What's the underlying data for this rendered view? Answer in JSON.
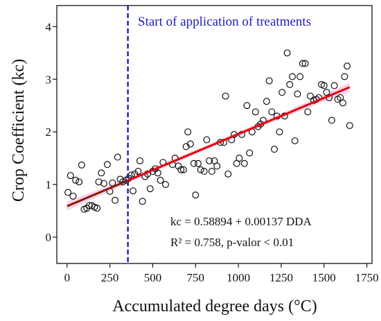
{
  "chart_data": {
    "type": "scatter",
    "title": "",
    "xlabel": "Accumulated degree days (°C)",
    "ylabel": "Crop Coefficient (kc)",
    "xlim": [
      -60,
      1780
    ],
    "ylim": [
      -0.5,
      4.4
    ],
    "xticks": [
      0,
      250,
      500,
      750,
      1000,
      1250,
      1500,
      1750
    ],
    "yticks": [
      0,
      1,
      2,
      3,
      4
    ],
    "grid": false,
    "treatment_line": {
      "x": 355,
      "label": "Start of application of treatments",
      "color": "#1d1db8"
    },
    "regression": {
      "intercept": 0.58894,
      "slope": 0.00137,
      "x_range": [
        0,
        1650
      ],
      "color_before": "#8b1a00",
      "color_after": "#e8000b",
      "equation": "kc = 0.58894 + 0.00137 DDA",
      "stats": "R² = 0.758, p-valor < 0.01"
    },
    "ci_band_color": "#f3c6e2",
    "points": [
      [
        5,
        0.85
      ],
      [
        20,
        1.17
      ],
      [
        35,
        0.78
      ],
      [
        50,
        1.08
      ],
      [
        70,
        1.05
      ],
      [
        85,
        1.37
      ],
      [
        100,
        0.53
      ],
      [
        115,
        0.55
      ],
      [
        130,
        0.6
      ],
      [
        145,
        0.6
      ],
      [
        160,
        0.57
      ],
      [
        175,
        0.55
      ],
      [
        185,
        1.05
      ],
      [
        200,
        1.22
      ],
      [
        215,
        1.02
      ],
      [
        235,
        1.38
      ],
      [
        250,
        0.87
      ],
      [
        265,
        1.03
      ],
      [
        280,
        0.7
      ],
      [
        295,
        1.52
      ],
      [
        310,
        1.1
      ],
      [
        325,
        1.05
      ],
      [
        345,
        1.08
      ],
      [
        360,
        1.12
      ],
      [
        375,
        1.18
      ],
      [
        385,
        0.88
      ],
      [
        395,
        1.2
      ],
      [
        415,
        1.25
      ],
      [
        425,
        1.45
      ],
      [
        440,
        0.68
      ],
      [
        455,
        1.15
      ],
      [
        470,
        1.2
      ],
      [
        485,
        0.92
      ],
      [
        500,
        1.25
      ],
      [
        515,
        1.3
      ],
      [
        530,
        1.22
      ],
      [
        545,
        1.08
      ],
      [
        560,
        1.42
      ],
      [
        575,
        1.0
      ],
      [
        615,
        1.38
      ],
      [
        630,
        1.5
      ],
      [
        650,
        1.35
      ],
      [
        665,
        1.28
      ],
      [
        680,
        1.28
      ],
      [
        695,
        1.72
      ],
      [
        705,
        2.0
      ],
      [
        720,
        1.77
      ],
      [
        740,
        1.4
      ],
      [
        750,
        0.8
      ],
      [
        765,
        1.4
      ],
      [
        780,
        1.28
      ],
      [
        800,
        1.25
      ],
      [
        815,
        1.85
      ],
      [
        830,
        1.45
      ],
      [
        845,
        1.25
      ],
      [
        860,
        1.45
      ],
      [
        875,
        1.35
      ],
      [
        895,
        1.8
      ],
      [
        915,
        1.8
      ],
      [
        925,
        2.68
      ],
      [
        940,
        1.2
      ],
      [
        960,
        1.85
      ],
      [
        975,
        1.95
      ],
      [
        990,
        1.4
      ],
      [
        1005,
        1.5
      ],
      [
        1020,
        1.95
      ],
      [
        1035,
        1.4
      ],
      [
        1050,
        2.5
      ],
      [
        1065,
        1.6
      ],
      [
        1080,
        2.0
      ],
      [
        1100,
        2.38
      ],
      [
        1115,
        2.1
      ],
      [
        1130,
        2.15
      ],
      [
        1145,
        2.22
      ],
      [
        1165,
        2.58
      ],
      [
        1180,
        2.97
      ],
      [
        1195,
        2.38
      ],
      [
        1210,
        1.67
      ],
      [
        1225,
        2.3
      ],
      [
        1240,
        2.0
      ],
      [
        1255,
        2.75
      ],
      [
        1270,
        2.3
      ],
      [
        1285,
        3.5
      ],
      [
        1300,
        2.9
      ],
      [
        1315,
        3.05
      ],
      [
        1330,
        1.83
      ],
      [
        1345,
        2.72
      ],
      [
        1360,
        3.05
      ],
      [
        1375,
        3.3
      ],
      [
        1390,
        3.3
      ],
      [
        1405,
        2.38
      ],
      [
        1420,
        2.68
      ],
      [
        1440,
        2.6
      ],
      [
        1455,
        2.62
      ],
      [
        1470,
        2.65
      ],
      [
        1485,
        2.9
      ],
      [
        1500,
        2.88
      ],
      [
        1515,
        2.75
      ],
      [
        1530,
        2.65
      ],
      [
        1545,
        2.22
      ],
      [
        1560,
        2.88
      ],
      [
        1580,
        2.62
      ],
      [
        1595,
        2.65
      ],
      [
        1610,
        2.55
      ],
      [
        1620,
        3.05
      ],
      [
        1635,
        3.25
      ],
      [
        1650,
        2.12
      ]
    ]
  }
}
